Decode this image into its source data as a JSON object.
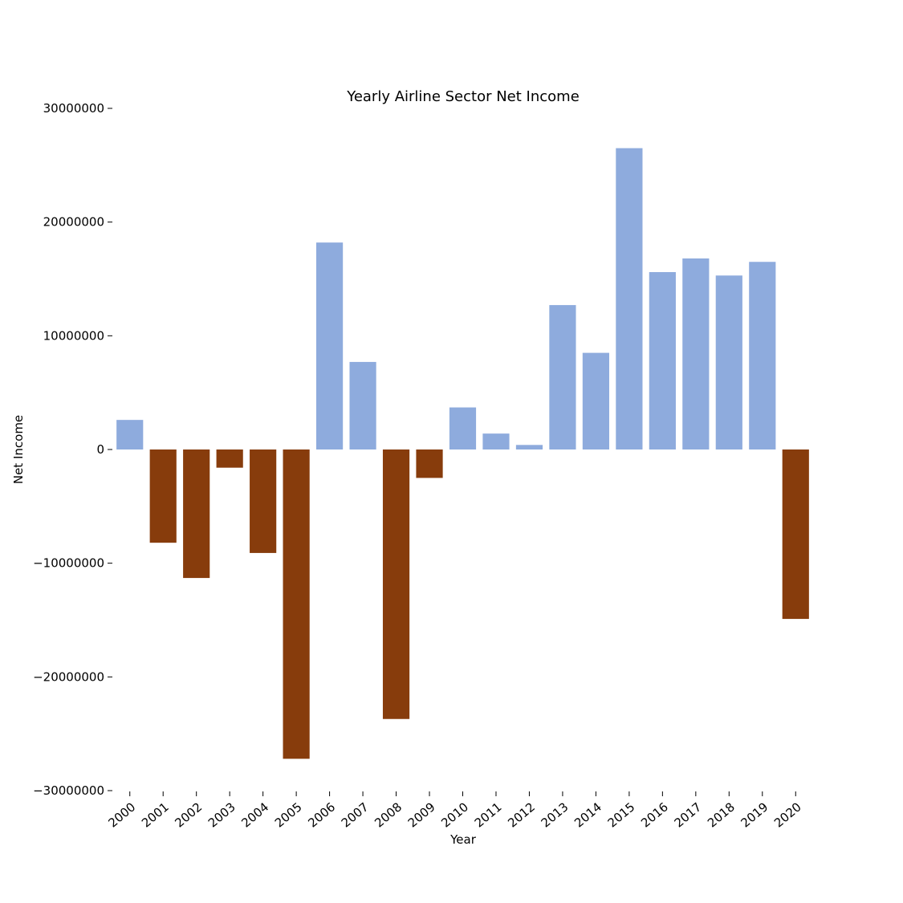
{
  "chart_data": {
    "type": "bar",
    "title": "Yearly Airline Sector Net Income",
    "xlabel": "Year",
    "ylabel": "Net Income",
    "ylim": [
      -30000000,
      30000000
    ],
    "yticks": [
      {
        "value": 30000000,
        "label": "30000000"
      },
      {
        "value": 20000000,
        "label": "20000000"
      },
      {
        "value": 10000000,
        "label": "10000000"
      },
      {
        "value": 0,
        "label": "0"
      },
      {
        "value": -10000000,
        "label": "−10000000"
      },
      {
        "value": -20000000,
        "label": "−20000000"
      },
      {
        "value": -30000000,
        "label": "−30000000"
      }
    ],
    "categories": [
      "2000",
      "2001",
      "2002",
      "2003",
      "2004",
      "2005",
      "2006",
      "2007",
      "2008",
      "2009",
      "2010",
      "2011",
      "2012",
      "2013",
      "2014",
      "2015",
      "2016",
      "2017",
      "2018",
      "2019",
      "2020"
    ],
    "values": [
      2600000,
      -8200000,
      -11300000,
      -1600000,
      -9100000,
      -27200000,
      18200000,
      7700000,
      -23700000,
      -2500000,
      3700000,
      1400000,
      400000,
      12700000,
      8500000,
      26500000,
      15600000,
      16800000,
      15300000,
      16500000,
      -14900000
    ],
    "positive_color": "#8eabdd",
    "negative_color": "#873c0c",
    "grid": false,
    "legend": "none"
  }
}
